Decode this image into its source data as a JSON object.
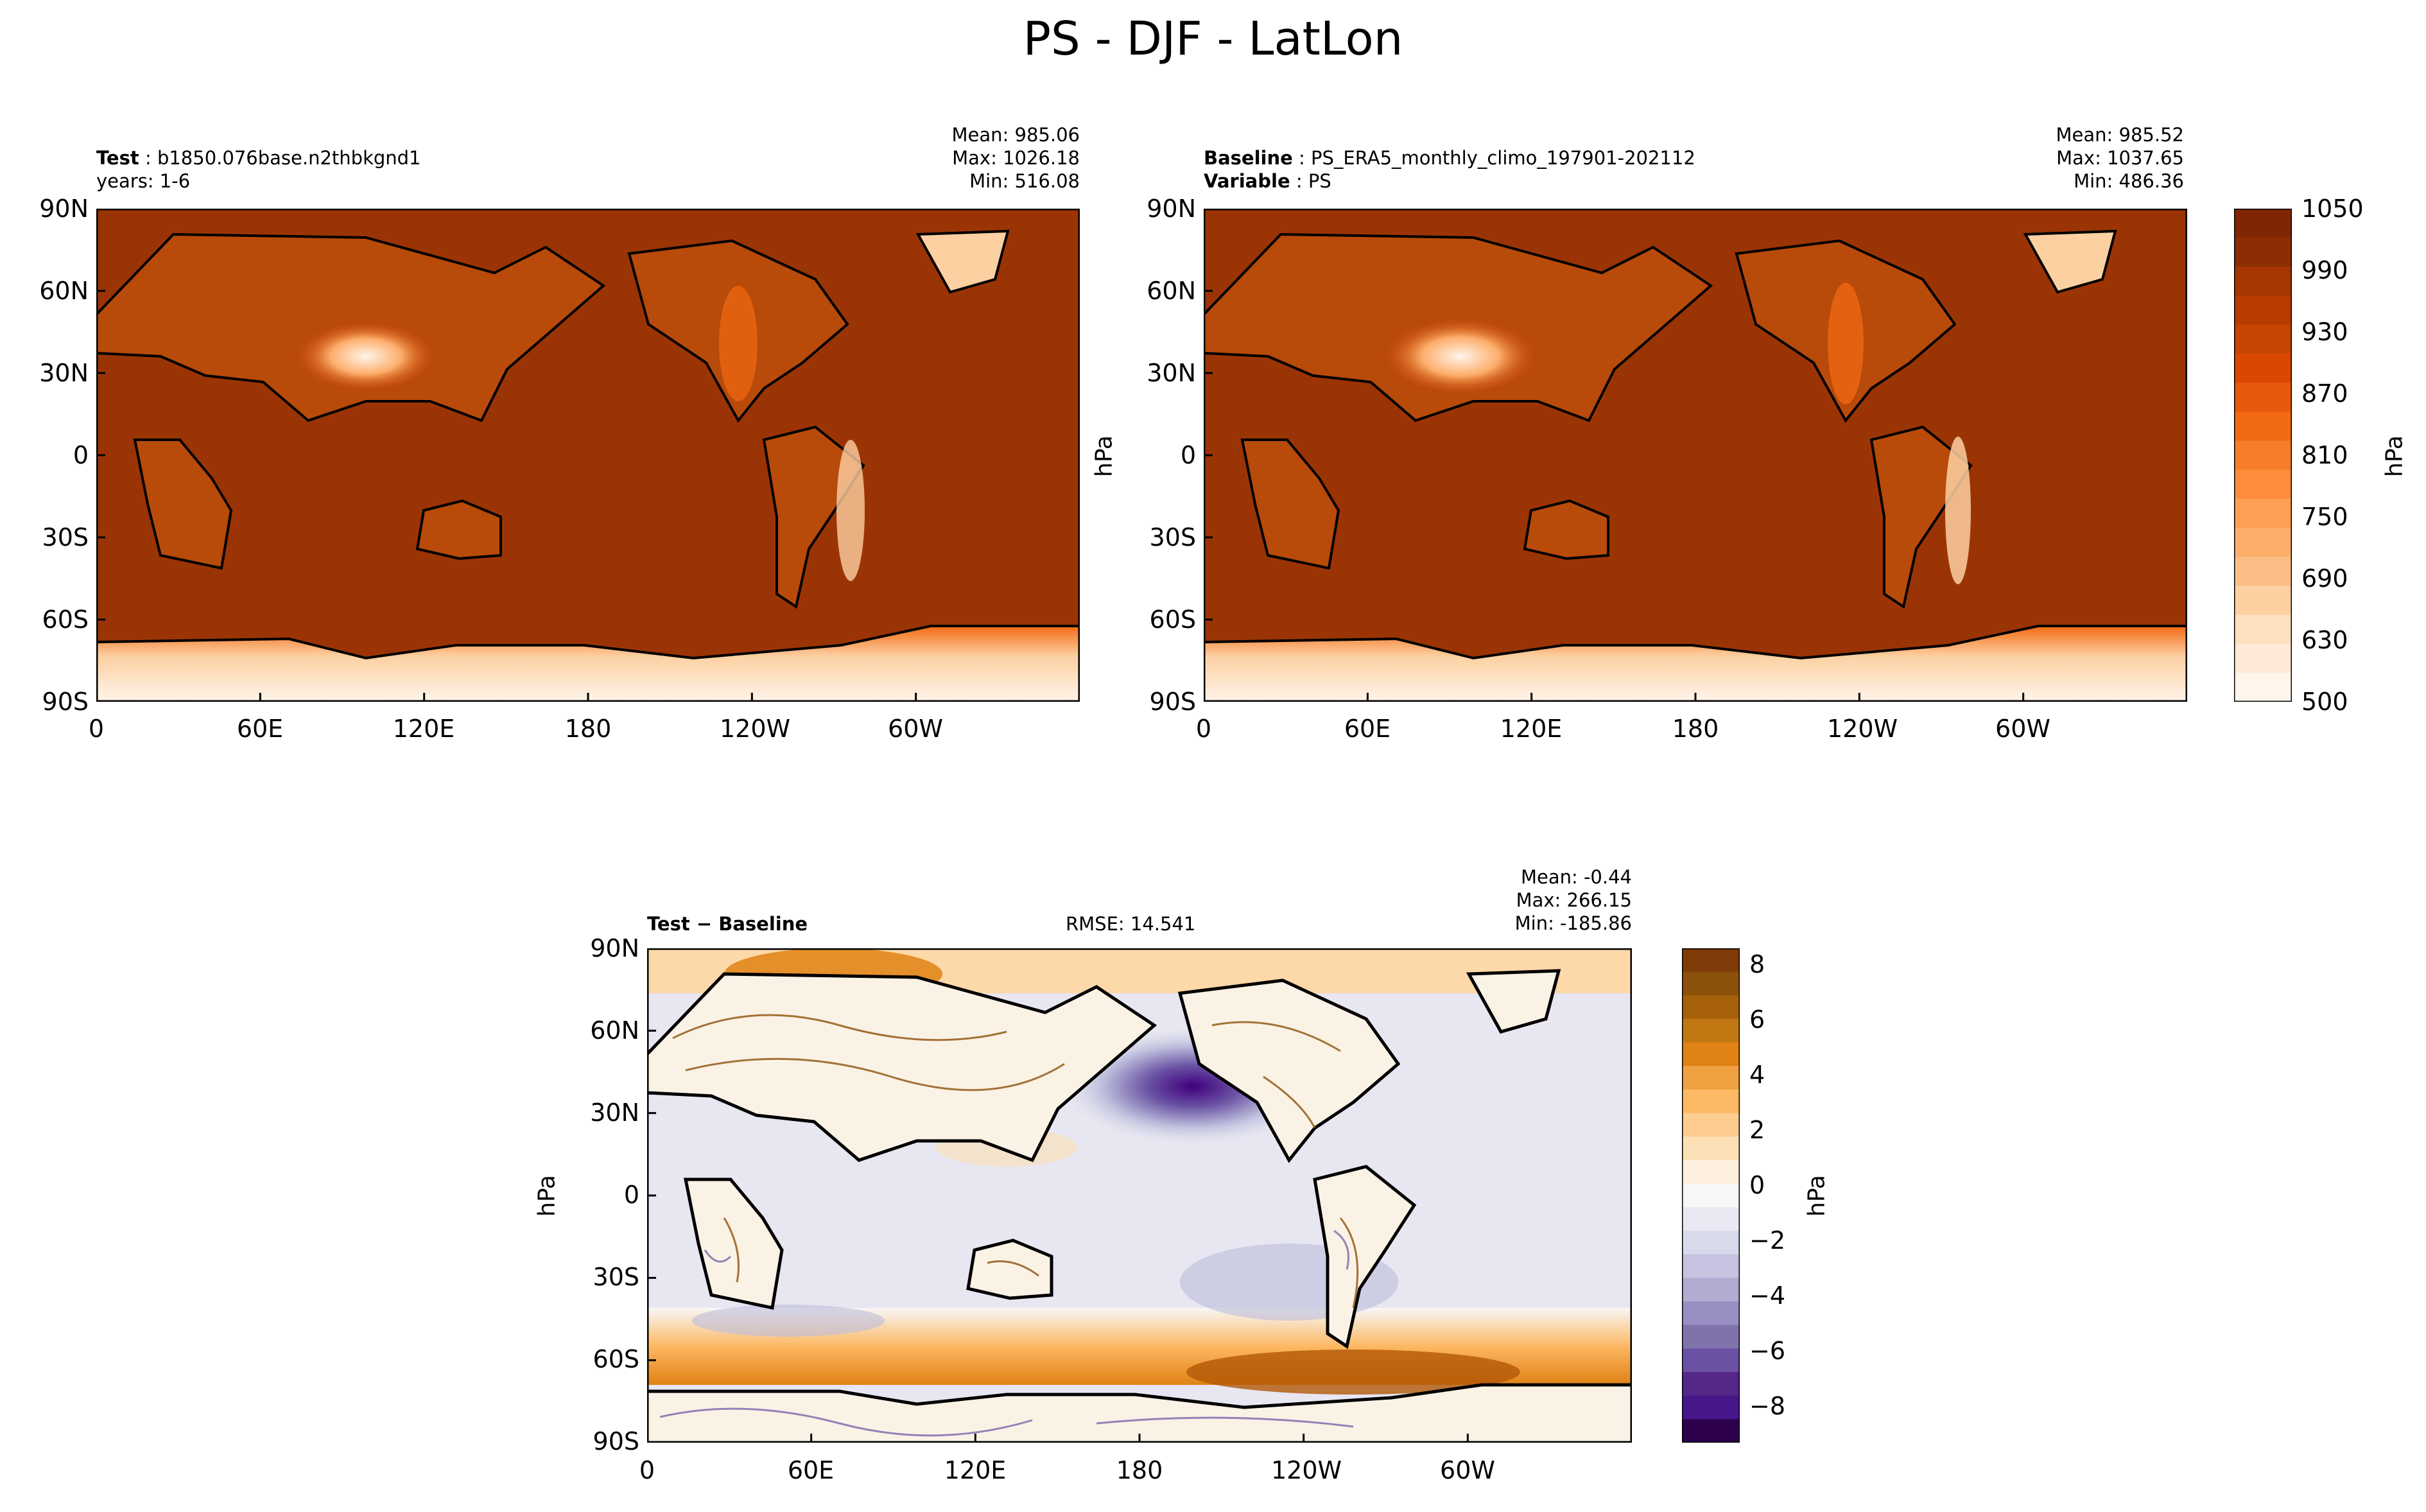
{
  "page": {
    "title": "PS - DJF - LatLon"
  },
  "chart_data": [
    {
      "type": "heatmap",
      "panel": "test",
      "info": {
        "label": "Test",
        "name": "b1850.076base.n2thbkgnd1",
        "years": "years: 1-6"
      },
      "stats": {
        "mean": "Mean: 985.06",
        "max": "Max: 1026.18",
        "min": "Min: 516.08"
      },
      "xticks": [
        "0",
        "60E",
        "120E",
        "180",
        "120W",
        "60W"
      ],
      "yticks": [
        "90N",
        "60N",
        "30N",
        "0",
        "30S",
        "60S",
        "90S"
      ],
      "xlim": [
        0,
        360
      ],
      "ylim": [
        -90,
        90
      ],
      "units": "hPa",
      "colorbar": {
        "ticks": [
          "1050",
          "990",
          "930",
          "870",
          "810",
          "750",
          "690",
          "630",
          "500"
        ],
        "label": "hPa",
        "range": [
          500,
          1050
        ]
      }
    },
    {
      "type": "heatmap",
      "panel": "baseline",
      "info": {
        "label": "Baseline",
        "name": "PS_ERA5_monthly_climo_197901-202112",
        "var_label": "Variable",
        "var": "PS"
      },
      "stats": {
        "mean": "Mean: 985.52",
        "max": "Max: 1037.65",
        "min": "Min: 486.36"
      },
      "xticks": [
        "0",
        "60E",
        "120E",
        "180",
        "120W",
        "60W"
      ],
      "yticks": [
        "90N",
        "60N",
        "30N",
        "0",
        "30S",
        "60S",
        "90S"
      ],
      "ylabel": "hPa",
      "xlim": [
        0,
        360
      ],
      "ylim": [
        -90,
        90
      ]
    },
    {
      "type": "heatmap",
      "panel": "difference",
      "info": {
        "label": "Test − Baseline",
        "rmse": "RMSE: 14.541"
      },
      "stats": {
        "mean": "Mean: -0.44",
        "max": "Max: 266.15",
        "min": "Min: -185.86"
      },
      "xticks": [
        "0",
        "60E",
        "120E",
        "180",
        "120W",
        "60W"
      ],
      "yticks": [
        "90N",
        "60N",
        "30N",
        "0",
        "30S",
        "60S",
        "90S"
      ],
      "ylabel": "hPa",
      "xlim": [
        0,
        360
      ],
      "ylim": [
        -90,
        90
      ],
      "colorbar": {
        "ticks": [
          "8",
          "6",
          "4",
          "2",
          "0",
          "−2",
          "−4",
          "−6",
          "−8"
        ],
        "label": "hPa",
        "range": [
          -9,
          9
        ]
      }
    }
  ],
  "colors": {
    "brown_dark": "#8c2d04",
    "brown_mid": "#9b3404",
    "orange": "#f16913",
    "peach": "#fdd0a2",
    "white": "#fff5eb",
    "purple_dark": "#3f007d",
    "purple_light": "#dadaeb",
    "diff_orange": "#e08214",
    "diff_brown": "#8c510a"
  }
}
